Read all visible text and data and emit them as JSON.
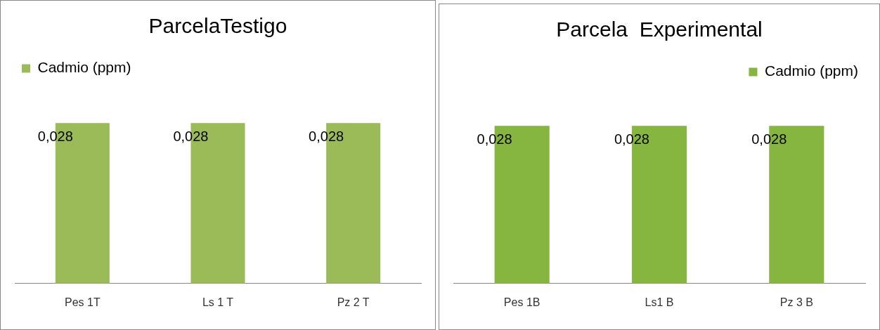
{
  "chart_data": [
    {
      "type": "bar",
      "title": "ParcelaTestigo",
      "categories": [
        "Pes 1T",
        "Ls 1 T",
        "Pz 2 T"
      ],
      "series": [
        {
          "name": "Cadmio (ppm)",
          "color": "#9bbb59",
          "values": [
            0.028,
            0.028,
            0.028
          ],
          "value_labels": [
            "0,028",
            "0,028",
            "0,028"
          ]
        }
      ],
      "legend": "top left",
      "grid": false,
      "tick_labels": "x"
    },
    {
      "type": "bar",
      "title": "Parcela  Experimental",
      "categories": [
        "Pes 1B",
        "Ls1 B",
        "Pz 3 B"
      ],
      "series": [
        {
          "name": "Cadmio (ppm)",
          "color": "#86b540",
          "values": [
            0.028,
            0.028,
            0.028
          ],
          "value_labels": [
            "0,028",
            "0,028",
            "0,028"
          ]
        }
      ],
      "legend": "top right",
      "grid": false,
      "tick_labels": "x"
    }
  ]
}
